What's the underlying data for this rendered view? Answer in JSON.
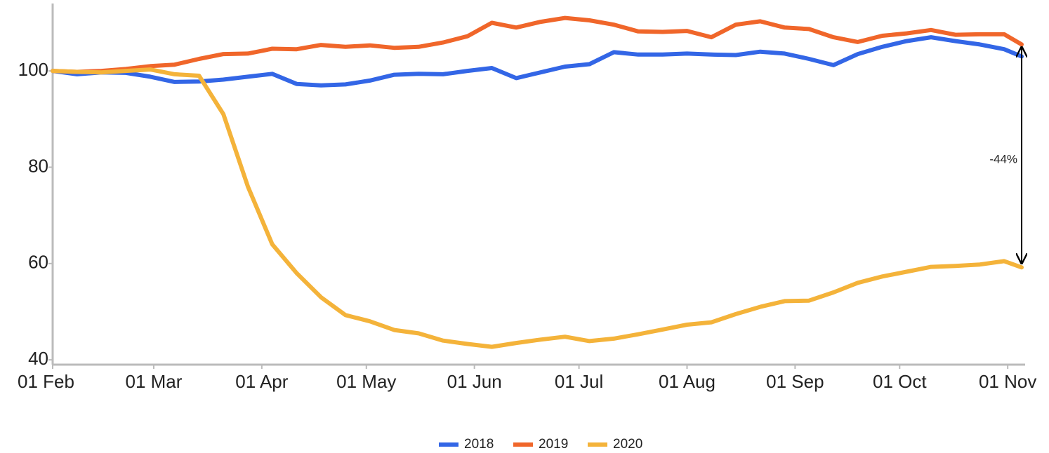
{
  "chart_data": {
    "type": "line",
    "x": [
      "01 Feb",
      "08 Feb",
      "15 Feb",
      "22 Feb",
      "29 Feb",
      "07 Mar",
      "14 Mar",
      "21 Mar",
      "28 Mar",
      "04 Apr",
      "11 Apr",
      "18 Apr",
      "25 Apr",
      "02 May",
      "09 May",
      "16 May",
      "23 May",
      "30 May",
      "06 Jun",
      "13 Jun",
      "20 Jun",
      "27 Jun",
      "04 Jul",
      "11 Jul",
      "18 Jul",
      "25 Jul",
      "01 Aug",
      "08 Aug",
      "15 Aug",
      "22 Aug",
      "29 Aug",
      "05 Sep",
      "12 Sep",
      "19 Sep",
      "26 Sep",
      "03 Oct",
      "10 Oct",
      "17 Oct",
      "24 Oct",
      "31 Oct",
      "05 Nov"
    ],
    "series": [
      {
        "name": "2018",
        "color": "#3366e6",
        "values": [
          100,
          99.3,
          99.7,
          99.6,
          98.8,
          97.7,
          97.8,
          98.2,
          98.8,
          99.4,
          97.3,
          97,
          97.2,
          98,
          99.2,
          99.4,
          99.3,
          100,
          100.6,
          98.5,
          99.7,
          100.9,
          101.4,
          103.9,
          103.4,
          103.4,
          103.6,
          103.4,
          103.3,
          104,
          103.6,
          102.5,
          101.2,
          103.5,
          105,
          106.2,
          107,
          106.2,
          105.5,
          104.5,
          103
        ]
      },
      {
        "name": "2019",
        "color": "#f0662a",
        "values": [
          100,
          99.8,
          100,
          100.4,
          101,
          101.3,
          102.5,
          103.5,
          103.6,
          104.6,
          104.5,
          105.4,
          105,
          105.3,
          104.8,
          105,
          105.9,
          107.2,
          110,
          109,
          110.2,
          111,
          110.5,
          109.6,
          108.2,
          108.1,
          108.3,
          107,
          109.6,
          110.3,
          109,
          108.7,
          107,
          106,
          107.3,
          107.8,
          108.5,
          107.5,
          107.6,
          107.6,
          105.5
        ]
      },
      {
        "name": "2020",
        "color": "#f4b33a",
        "values": [
          100,
          99.8,
          99.7,
          100,
          100.3,
          99.3,
          99,
          91,
          76,
          64,
          58,
          53,
          49.3,
          48,
          46.2,
          45.5,
          44,
          43.3,
          42.7,
          43.5,
          44.2,
          44.8,
          43.9,
          44.4,
          45.3,
          46.3,
          47.3,
          47.8,
          49.5,
          51,
          52.2,
          52.3,
          54,
          56,
          57.3,
          58.3,
          59.3,
          59.5,
          59.8,
          60.5,
          59.2
        ]
      }
    ],
    "xlim": [
      "01 Feb",
      "06 Nov"
    ],
    "xticks": [
      "01 Feb",
      "01 Mar",
      "01 Apr",
      "01 May",
      "01 Jun",
      "01 Jul",
      "01 Aug",
      "01 Sep",
      "01 Oct",
      "01 Nov"
    ],
    "ylim": [
      39,
      114
    ],
    "yticks": [
      40,
      60,
      80,
      100
    ],
    "annotation": "-44%",
    "legend": "bottom"
  }
}
